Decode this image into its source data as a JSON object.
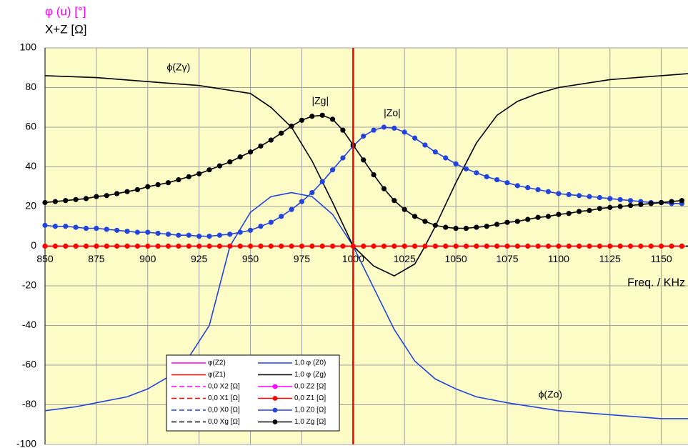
{
  "chart_data": {
    "type": "line",
    "y_labels": [
      {
        "text": "φ (u) [°]",
        "color": "#ff00ff"
      },
      {
        "text": "X+Z [Ω]",
        "color": "#000000"
      }
    ],
    "x_label": "Freq. / KHz",
    "xlim": [
      850,
      1163
    ],
    "ylim": [
      -100,
      100
    ],
    "xticks": [
      850,
      875,
      900,
      925,
      950,
      975,
      1000,
      1025,
      1050,
      1075,
      1100,
      1125,
      1150
    ],
    "yticks": [
      -100,
      -80,
      -60,
      -40,
      -20,
      0,
      20,
      40,
      60,
      80,
      100
    ],
    "grid": true,
    "background": "#fdfbc6",
    "legend": "bottom-left",
    "vline": {
      "x": 1000,
      "color": "#ff0000"
    },
    "annotations": [
      {
        "text": "ϕ(Zγ)",
        "x": 915,
        "y": 90
      },
      {
        "text": "|Zg|",
        "x": 984,
        "y": 73
      },
      {
        "text": "|Zo|",
        "x": 1019,
        "y": 67
      },
      {
        "text": "ϕ(Zo)",
        "x": 1096,
        "y": -75
      }
    ],
    "x": [
      850,
      855,
      860,
      865,
      870,
      875,
      880,
      885,
      890,
      895,
      900,
      905,
      910,
      915,
      920,
      925,
      930,
      935,
      940,
      945,
      950,
      955,
      960,
      965,
      970,
      975,
      980,
      985,
      990,
      995,
      1000,
      1005,
      1010,
      1015,
      1020,
      1025,
      1030,
      1035,
      1040,
      1045,
      1050,
      1055,
      1060,
      1065,
      1070,
      1075,
      1080,
      1085,
      1090,
      1095,
      1100,
      1105,
      1110,
      1115,
      1120,
      1125,
      1130,
      1135,
      1140,
      1145,
      1150,
      1155,
      1160
    ],
    "series": [
      {
        "name": "φ(Z2)",
        "color": "#ff00ff",
        "style": "solid",
        "marker": false,
        "x": [
          850,
          1163
        ],
        "values": [
          0,
          0
        ]
      },
      {
        "name": "φ(Z1)",
        "color": "#ff0000",
        "style": "solid",
        "marker": false,
        "x": [
          850,
          1163
        ],
        "values": [
          0,
          0
        ]
      },
      {
        "name": "0,0 X2 [Ω]",
        "color": "#ff00ff",
        "style": "dashed",
        "marker": false,
        "x": [
          850,
          1163
        ],
        "values": [
          0,
          0
        ]
      },
      {
        "name": "0,0 X1 [Ω]",
        "color": "#ff0000",
        "style": "dashed",
        "marker": false,
        "x": [
          850,
          1163
        ],
        "values": [
          0,
          0
        ]
      },
      {
        "name": "0,0 X0 [Ω]",
        "color": "#2244dd",
        "style": "dashed",
        "marker": false,
        "x": [
          850,
          1163
        ],
        "values": [
          0,
          0
        ]
      },
      {
        "name": "0,0 Xg [Ω]",
        "color": "#000000",
        "style": "dashed",
        "marker": false,
        "x": [
          850,
          1163
        ],
        "values": [
          0,
          0
        ]
      },
      {
        "name": "1,0 φ (Z0)",
        "color": "#2244dd",
        "style": "solid",
        "marker": false,
        "x": [
          850,
          865,
          875,
          890,
          900,
          910,
          920,
          930,
          940,
          950,
          960,
          970,
          980,
          990,
          1000,
          1010,
          1020,
          1030,
          1040,
          1050,
          1060,
          1075,
          1100,
          1125,
          1150,
          1163
        ],
        "values": [
          -83,
          -81,
          -79,
          -76,
          -72,
          -66,
          -56,
          -40,
          0,
          17,
          25,
          27,
          25,
          16,
          0,
          -21,
          -42,
          -58,
          -67,
          -72,
          -76,
          -79,
          -83,
          -85,
          -87,
          -87
        ]
      },
      {
        "name": "1,0 φ (Zg)",
        "color": "#000000",
        "style": "solid",
        "marker": false,
        "x": [
          850,
          875,
          900,
          925,
          950,
          960,
          970,
          980,
          990,
          1000,
          1010,
          1020,
          1030,
          1035,
          1040,
          1050,
          1060,
          1070,
          1080,
          1090,
          1100,
          1125,
          1150,
          1163
        ],
        "values": [
          86,
          85,
          83,
          81,
          77,
          70,
          60,
          43,
          22,
          0,
          -10,
          -15,
          -9,
          0,
          10,
          32,
          52,
          66,
          73,
          77,
          80,
          84,
          86,
          87
        ]
      },
      {
        "name": "0,0 Z2 [Ω]",
        "color": "#ff00ff",
        "style": "solid",
        "marker": true,
        "x": [
          850,
          1160
        ],
        "values": [
          0,
          0
        ]
      },
      {
        "name": "0,0 Z1 [Ω]",
        "color": "#ff0000",
        "style": "solid",
        "marker": true,
        "values": [
          0,
          0,
          0,
          0,
          0,
          0,
          0,
          0,
          0,
          0,
          0,
          0,
          0,
          0,
          0,
          0,
          0,
          0,
          0,
          0,
          0,
          0,
          0,
          0,
          0,
          0,
          0,
          0,
          0,
          0,
          0,
          0,
          0,
          0,
          0,
          0,
          0,
          0,
          0,
          0,
          0,
          0,
          0,
          0,
          0,
          0,
          0,
          0,
          0,
          0,
          0,
          0,
          0,
          0,
          0,
          0,
          0,
          0,
          0,
          0,
          0,
          0,
          0
        ]
      },
      {
        "name": "1,0 Z0 [Ω]",
        "color": "#2244dd",
        "style": "solid",
        "marker": true,
        "values": [
          10.5,
          10,
          10,
          9.5,
          9,
          9,
          8.5,
          8,
          7.5,
          7,
          7,
          6.5,
          6,
          5.5,
          5.5,
          5,
          5,
          5.5,
          6,
          7,
          8,
          10,
          12,
          15,
          18.5,
          22.5,
          27,
          32.5,
          38.5,
          44.5,
          50.5,
          55.5,
          58.5,
          60,
          59.5,
          57.5,
          54.5,
          51,
          47.5,
          44.5,
          41.5,
          39,
          37,
          35,
          33.5,
          32,
          30.5,
          29.5,
          28.5,
          27.5,
          26.5,
          26,
          25.5,
          25,
          24.5,
          24,
          23.5,
          23,
          22.5,
          22,
          22,
          21.5,
          21.5
        ]
      },
      {
        "name": "1,0 Zg [Ω]",
        "color": "#000000",
        "style": "solid",
        "marker": true,
        "values": [
          22,
          22.5,
          23,
          23.5,
          24,
          25,
          25.5,
          26.5,
          27.5,
          28.5,
          30,
          31,
          32,
          33.5,
          35,
          36.5,
          38.5,
          40.5,
          42.5,
          45,
          47.5,
          50.5,
          53.5,
          57,
          60.5,
          63.5,
          65.5,
          66,
          64,
          58.5,
          51,
          43.5,
          36,
          29,
          23,
          18.5,
          15,
          12.5,
          10.5,
          9.5,
          9,
          9,
          9.5,
          10,
          11,
          12,
          12.5,
          13.5,
          14.5,
          15,
          16,
          16.5,
          17.5,
          18,
          19,
          19.5,
          20,
          20.5,
          21,
          21.5,
          22,
          22.5,
          23
        ]
      }
    ]
  }
}
